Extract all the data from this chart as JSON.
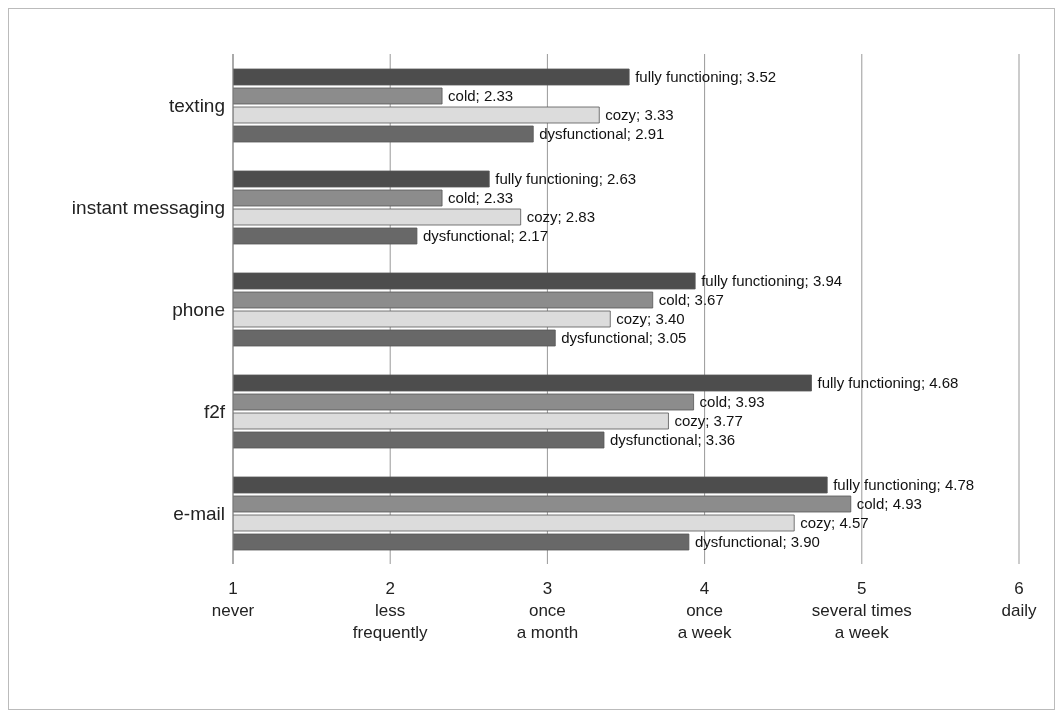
{
  "chart_data": {
    "type": "bar",
    "orientation": "horizontal",
    "categories": [
      "texting",
      "instant messaging",
      "phone",
      "f2f",
      "e-mail"
    ],
    "series": [
      {
        "color": "#4d4d4d",
        "values": [
          3.52,
          2.63,
          3.94,
          4.68,
          4.78
        ],
        "value_labels": [
          "fully functioning; 3.52",
          "fully functioning; 2.63",
          "fully functioning; 3.94",
          "fully functioning; 4.68",
          "fully functioning; 4.78"
        ]
      },
      {
        "color": "#8c8c8c",
        "values": [
          2.33,
          2.33,
          3.67,
          3.93,
          4.93
        ],
        "value_labels": [
          "cold; 2.33",
          "cold; 2.33",
          "cold; 3.67",
          "cold; 3.93",
          "cold; 4.93"
        ]
      },
      {
        "color": "#dcdcdc",
        "values": [
          3.33,
          2.83,
          3.4,
          3.77,
          4.57
        ],
        "value_labels": [
          "cozy; 3.33",
          "cozy; 2.83",
          "cozy; 3.40",
          "cozy; 3.77",
          "cozy; 4.57"
        ]
      },
      {
        "color": "#686868",
        "values": [
          2.91,
          2.17,
          3.05,
          3.36,
          3.9
        ],
        "value_labels": [
          "dysfunctional; 2.91",
          "dysfunctional; 2.17",
          "dysfunctional; 3.05",
          "dysfunctional; 3.36",
          "dysfunctional; 3.90"
        ]
      }
    ],
    "xlim": [
      1,
      6
    ],
    "xticks": [
      {
        "value": 1,
        "label": "1\nnever"
      },
      {
        "value": 2,
        "label": "2\nless\nfrequently"
      },
      {
        "value": 3,
        "label": "3\nonce\na month"
      },
      {
        "value": 4,
        "label": "4\nonce\na week"
      },
      {
        "value": 5,
        "label": "5\nseveral times\na week"
      },
      {
        "value": 6,
        "label": "6\ndaily"
      }
    ],
    "grid": "x",
    "legend": false
  }
}
